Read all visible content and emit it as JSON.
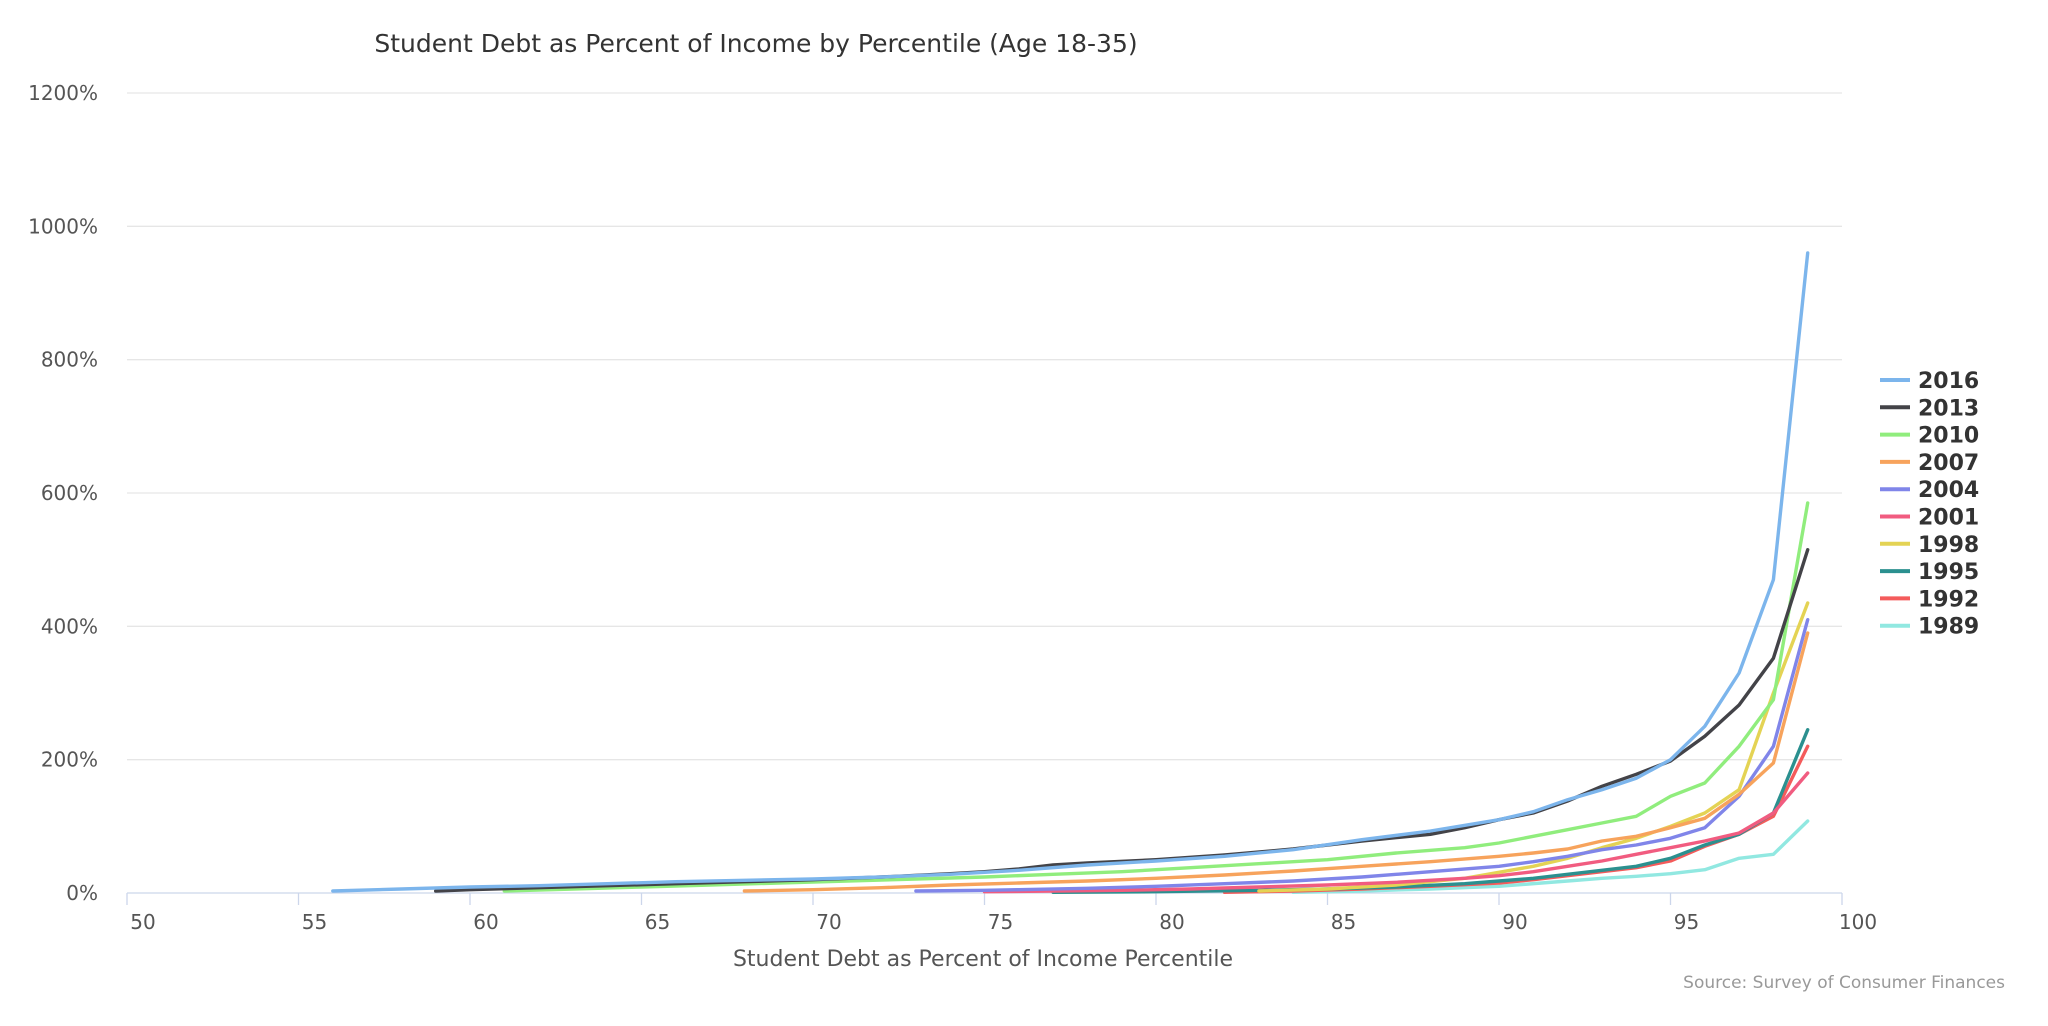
{
  "chart_data": {
    "type": "line",
    "title": "Student Debt as Percent of Income by Percentile (Age 18-35)",
    "xlabel": "Student Debt as Percent of Income Percentile",
    "ylabel": "",
    "credit": "Source: Survey of Consumer Finances",
    "xlim": [
      50,
      100
    ],
    "ylim": [
      0,
      1200
    ],
    "x_ticks": [
      50,
      55,
      60,
      65,
      70,
      75,
      80,
      85,
      90,
      95,
      100
    ],
    "x_tick_labels": [
      "50",
      "55",
      "60",
      "65",
      "70",
      "75",
      "80",
      "85",
      "90",
      "95",
      "100"
    ],
    "y_ticks": [
      0,
      200,
      400,
      600,
      800,
      1000,
      1200
    ],
    "y_tick_labels": [
      "0%",
      "200%",
      "400%",
      "600%",
      "800%",
      "1000%",
      "1200%"
    ],
    "grid": "horizontal",
    "legend_position": "right",
    "series": [
      {
        "name": "2016",
        "color": "#7cb5ec",
        "points": [
          [
            56,
            3
          ],
          [
            58,
            6
          ],
          [
            60,
            9
          ],
          [
            62,
            11
          ],
          [
            64,
            14
          ],
          [
            66,
            17
          ],
          [
            68,
            19
          ],
          [
            70,
            21
          ],
          [
            72,
            24
          ],
          [
            74,
            28
          ],
          [
            76,
            34
          ],
          [
            78,
            42
          ],
          [
            80,
            48
          ],
          [
            82,
            55
          ],
          [
            84,
            65
          ],
          [
            86,
            80
          ],
          [
            88,
            93
          ],
          [
            90,
            110
          ],
          [
            91,
            122
          ],
          [
            92,
            140
          ],
          [
            93,
            155
          ],
          [
            94,
            172
          ],
          [
            95,
            200
          ],
          [
            96,
            250
          ],
          [
            97,
            330
          ],
          [
            98,
            470
          ],
          [
            99,
            960
          ]
        ]
      },
      {
        "name": "2013",
        "color": "#434348",
        "points": [
          [
            59,
            3
          ],
          [
            60,
            5
          ],
          [
            62,
            8
          ],
          [
            64,
            11
          ],
          [
            66,
            14
          ],
          [
            68,
            17
          ],
          [
            70,
            20
          ],
          [
            72,
            24
          ],
          [
            74,
            29
          ],
          [
            75,
            32
          ],
          [
            76,
            36
          ],
          [
            77,
            42
          ],
          [
            78,
            45
          ],
          [
            80,
            50
          ],
          [
            82,
            57
          ],
          [
            84,
            66
          ],
          [
            86,
            78
          ],
          [
            88,
            88
          ],
          [
            89,
            98
          ],
          [
            90,
            110
          ],
          [
            91,
            120
          ],
          [
            92,
            138
          ],
          [
            93,
            160
          ],
          [
            94,
            178
          ],
          [
            95,
            198
          ],
          [
            96,
            235
          ],
          [
            97,
            282
          ],
          [
            98,
            352
          ],
          [
            99,
            515
          ]
        ]
      },
      {
        "name": "2010",
        "color": "#90ed7d",
        "points": [
          [
            61,
            3
          ],
          [
            63,
            6
          ],
          [
            65,
            9
          ],
          [
            67,
            12
          ],
          [
            69,
            15
          ],
          [
            71,
            18
          ],
          [
            73,
            21
          ],
          [
            75,
            24
          ],
          [
            77,
            28
          ],
          [
            79,
            32
          ],
          [
            81,
            38
          ],
          [
            83,
            44
          ],
          [
            85,
            50
          ],
          [
            87,
            60
          ],
          [
            89,
            68
          ],
          [
            90,
            75
          ],
          [
            91,
            85
          ],
          [
            92,
            95
          ],
          [
            93,
            105
          ],
          [
            94,
            115
          ],
          [
            95,
            145
          ],
          [
            96,
            165
          ],
          [
            97,
            220
          ],
          [
            98,
            290
          ],
          [
            99,
            585
          ]
        ]
      },
      {
        "name": "2007",
        "color": "#f7a35c",
        "points": [
          [
            68,
            3
          ],
          [
            70,
            5
          ],
          [
            72,
            8
          ],
          [
            74,
            12
          ],
          [
            76,
            15
          ],
          [
            78,
            18
          ],
          [
            80,
            22
          ],
          [
            82,
            27
          ],
          [
            84,
            33
          ],
          [
            86,
            40
          ],
          [
            88,
            47
          ],
          [
            90,
            55
          ],
          [
            91,
            60
          ],
          [
            92,
            66
          ],
          [
            93,
            78
          ],
          [
            94,
            85
          ],
          [
            95,
            98
          ],
          [
            96,
            112
          ],
          [
            97,
            148
          ],
          [
            98,
            195
          ],
          [
            99,
            390
          ]
        ]
      },
      {
        "name": "2004",
        "color": "#8085e9",
        "points": [
          [
            73,
            3
          ],
          [
            75,
            4
          ],
          [
            76,
            5
          ],
          [
            78,
            7
          ],
          [
            80,
            10
          ],
          [
            82,
            14
          ],
          [
            84,
            18
          ],
          [
            86,
            24
          ],
          [
            88,
            32
          ],
          [
            90,
            40
          ],
          [
            91,
            47
          ],
          [
            92,
            55
          ],
          [
            93,
            65
          ],
          [
            94,
            72
          ],
          [
            95,
            82
          ],
          [
            96,
            98
          ],
          [
            97,
            145
          ],
          [
            98,
            220
          ],
          [
            99,
            410
          ]
        ]
      },
      {
        "name": "2001",
        "color": "#f15c80",
        "points": [
          [
            75,
            2
          ],
          [
            77,
            3
          ],
          [
            79,
            4
          ],
          [
            81,
            6
          ],
          [
            83,
            9
          ],
          [
            85,
            12
          ],
          [
            87,
            16
          ],
          [
            89,
            22
          ],
          [
            90,
            26
          ],
          [
            91,
            32
          ],
          [
            92,
            40
          ],
          [
            93,
            48
          ],
          [
            94,
            58
          ],
          [
            95,
            68
          ],
          [
            96,
            78
          ],
          [
            97,
            90
          ],
          [
            98,
            120
          ],
          [
            99,
            180
          ]
        ]
      },
      {
        "name": "1998",
        "color": "#e4d354",
        "points": [
          [
            83,
            3
          ],
          [
            85,
            6
          ],
          [
            87,
            12
          ],
          [
            89,
            22
          ],
          [
            91,
            40
          ],
          [
            92,
            52
          ],
          [
            93,
            68
          ],
          [
            94,
            82
          ],
          [
            95,
            100
          ],
          [
            96,
            120
          ],
          [
            97,
            155
          ],
          [
            98,
            300
          ],
          [
            99,
            435
          ]
        ]
      },
      {
        "name": "1995",
        "color": "#2b908f",
        "points": [
          [
            77,
            1
          ],
          [
            80,
            2
          ],
          [
            83,
            4
          ],
          [
            85,
            6
          ],
          [
            87,
            9
          ],
          [
            89,
            14
          ],
          [
            90,
            18
          ],
          [
            91,
            22
          ],
          [
            92,
            28
          ],
          [
            93,
            34
          ],
          [
            94,
            40
          ],
          [
            95,
            52
          ],
          [
            96,
            72
          ],
          [
            97,
            88
          ],
          [
            98,
            120
          ],
          [
            99,
            245
          ]
        ]
      },
      {
        "name": "1992",
        "color": "#f45b5b",
        "points": [
          [
            82,
            1
          ],
          [
            84,
            3
          ],
          [
            86,
            6
          ],
          [
            88,
            10
          ],
          [
            90,
            15
          ],
          [
            91,
            20
          ],
          [
            92,
            26
          ],
          [
            93,
            32
          ],
          [
            94,
            38
          ],
          [
            95,
            48
          ],
          [
            96,
            70
          ],
          [
            97,
            88
          ],
          [
            98,
            115
          ],
          [
            99,
            220
          ]
        ]
      },
      {
        "name": "1989",
        "color": "#91e8e1",
        "points": [
          [
            84,
            1
          ],
          [
            86,
            3
          ],
          [
            88,
            6
          ],
          [
            90,
            10
          ],
          [
            92,
            18
          ],
          [
            93,
            22
          ],
          [
            94,
            25
          ],
          [
            95,
            29
          ],
          [
            96,
            35
          ],
          [
            97,
            52
          ],
          [
            98,
            58
          ],
          [
            99,
            108
          ]
        ]
      }
    ]
  }
}
